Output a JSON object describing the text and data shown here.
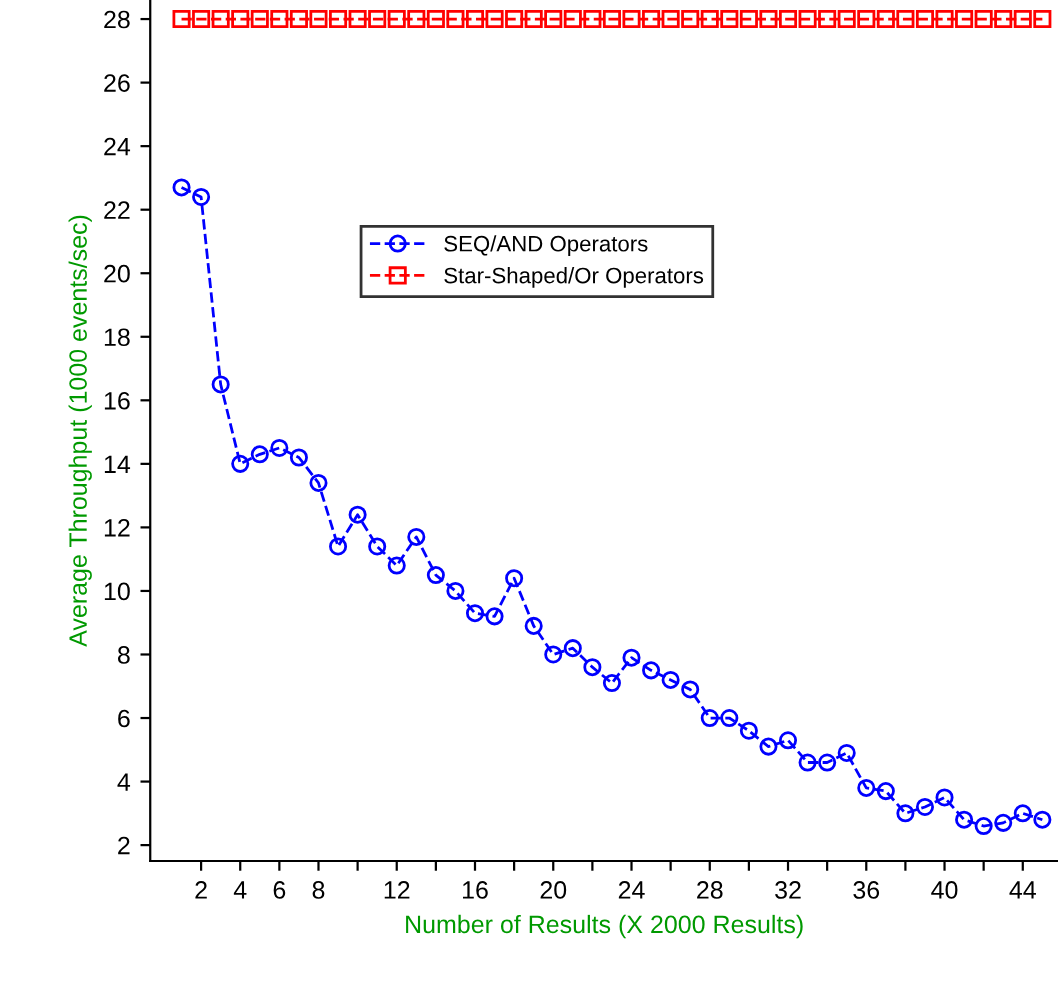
{
  "chart_data": {
    "type": "line",
    "xlabel": "Number of Results (X 2000 Results)",
    "ylabel": "Average Throughput (1000 events/sec)",
    "x": [
      1,
      2,
      3,
      4,
      5,
      6,
      7,
      8,
      9,
      10,
      11,
      12,
      13,
      14,
      15,
      16,
      17,
      18,
      19,
      20,
      21,
      22,
      23,
      24,
      25,
      26,
      27,
      28,
      29,
      30,
      31,
      32,
      33,
      34,
      35,
      36,
      37,
      38,
      39,
      40,
      41,
      42,
      43,
      44,
      45
    ],
    "series": [
      {
        "name": "SEQ/AND Operators",
        "color": "#0000ff",
        "marker": "circle",
        "line_style": "dashed",
        "values": [
          22.7,
          22.4,
          16.5,
          14.0,
          14.3,
          14.5,
          14.2,
          13.4,
          11.4,
          12.4,
          11.4,
          10.8,
          11.7,
          10.5,
          10.0,
          9.3,
          9.2,
          10.4,
          8.9,
          8.0,
          8.2,
          7.6,
          7.1,
          7.9,
          7.5,
          7.2,
          6.9,
          6.0,
          6.0,
          5.6,
          5.1,
          5.3,
          4.6,
          4.6,
          4.9,
          3.8,
          3.7,
          3.0,
          3.2,
          3.5,
          2.8,
          2.6,
          2.7,
          3.0,
          2.8
        ]
      },
      {
        "name": "Star-Shaped/Or Operators",
        "color": "#ff0000",
        "marker": "square",
        "line_style": "dashed",
        "values": [
          28,
          28,
          28,
          28,
          28,
          28,
          28,
          28,
          28,
          28,
          28,
          28,
          28,
          28,
          28,
          28,
          28,
          28,
          28,
          28,
          28,
          28,
          28,
          28,
          28,
          28,
          28,
          28,
          28,
          28,
          28,
          28,
          28,
          28,
          28,
          28,
          28,
          28,
          28,
          28,
          28,
          28,
          28,
          28,
          28
        ]
      }
    ],
    "xlim": [
      -0.6,
      45.8
    ],
    "ylim": [
      1.5,
      28.6
    ],
    "xticks": [
      2,
      4,
      6,
      8,
      {
        "value": 10,
        "label": null
      },
      12,
      {
        "value": 14,
        "label": null
      },
      16,
      {
        "value": 18,
        "label": null
      },
      20,
      {
        "value": 22,
        "label": null
      },
      24,
      {
        "value": 26,
        "label": null
      },
      28,
      {
        "value": 30,
        "label": null
      },
      32,
      {
        "value": 34,
        "label": null
      },
      36,
      {
        "value": 38,
        "label": null
      },
      40,
      {
        "value": 42,
        "label": null
      },
      44
    ],
    "yticks": [
      2,
      4,
      6,
      8,
      10,
      12,
      14,
      16,
      18,
      20,
      22,
      24,
      26,
      28
    ],
    "grid": false,
    "legend": "top"
  }
}
